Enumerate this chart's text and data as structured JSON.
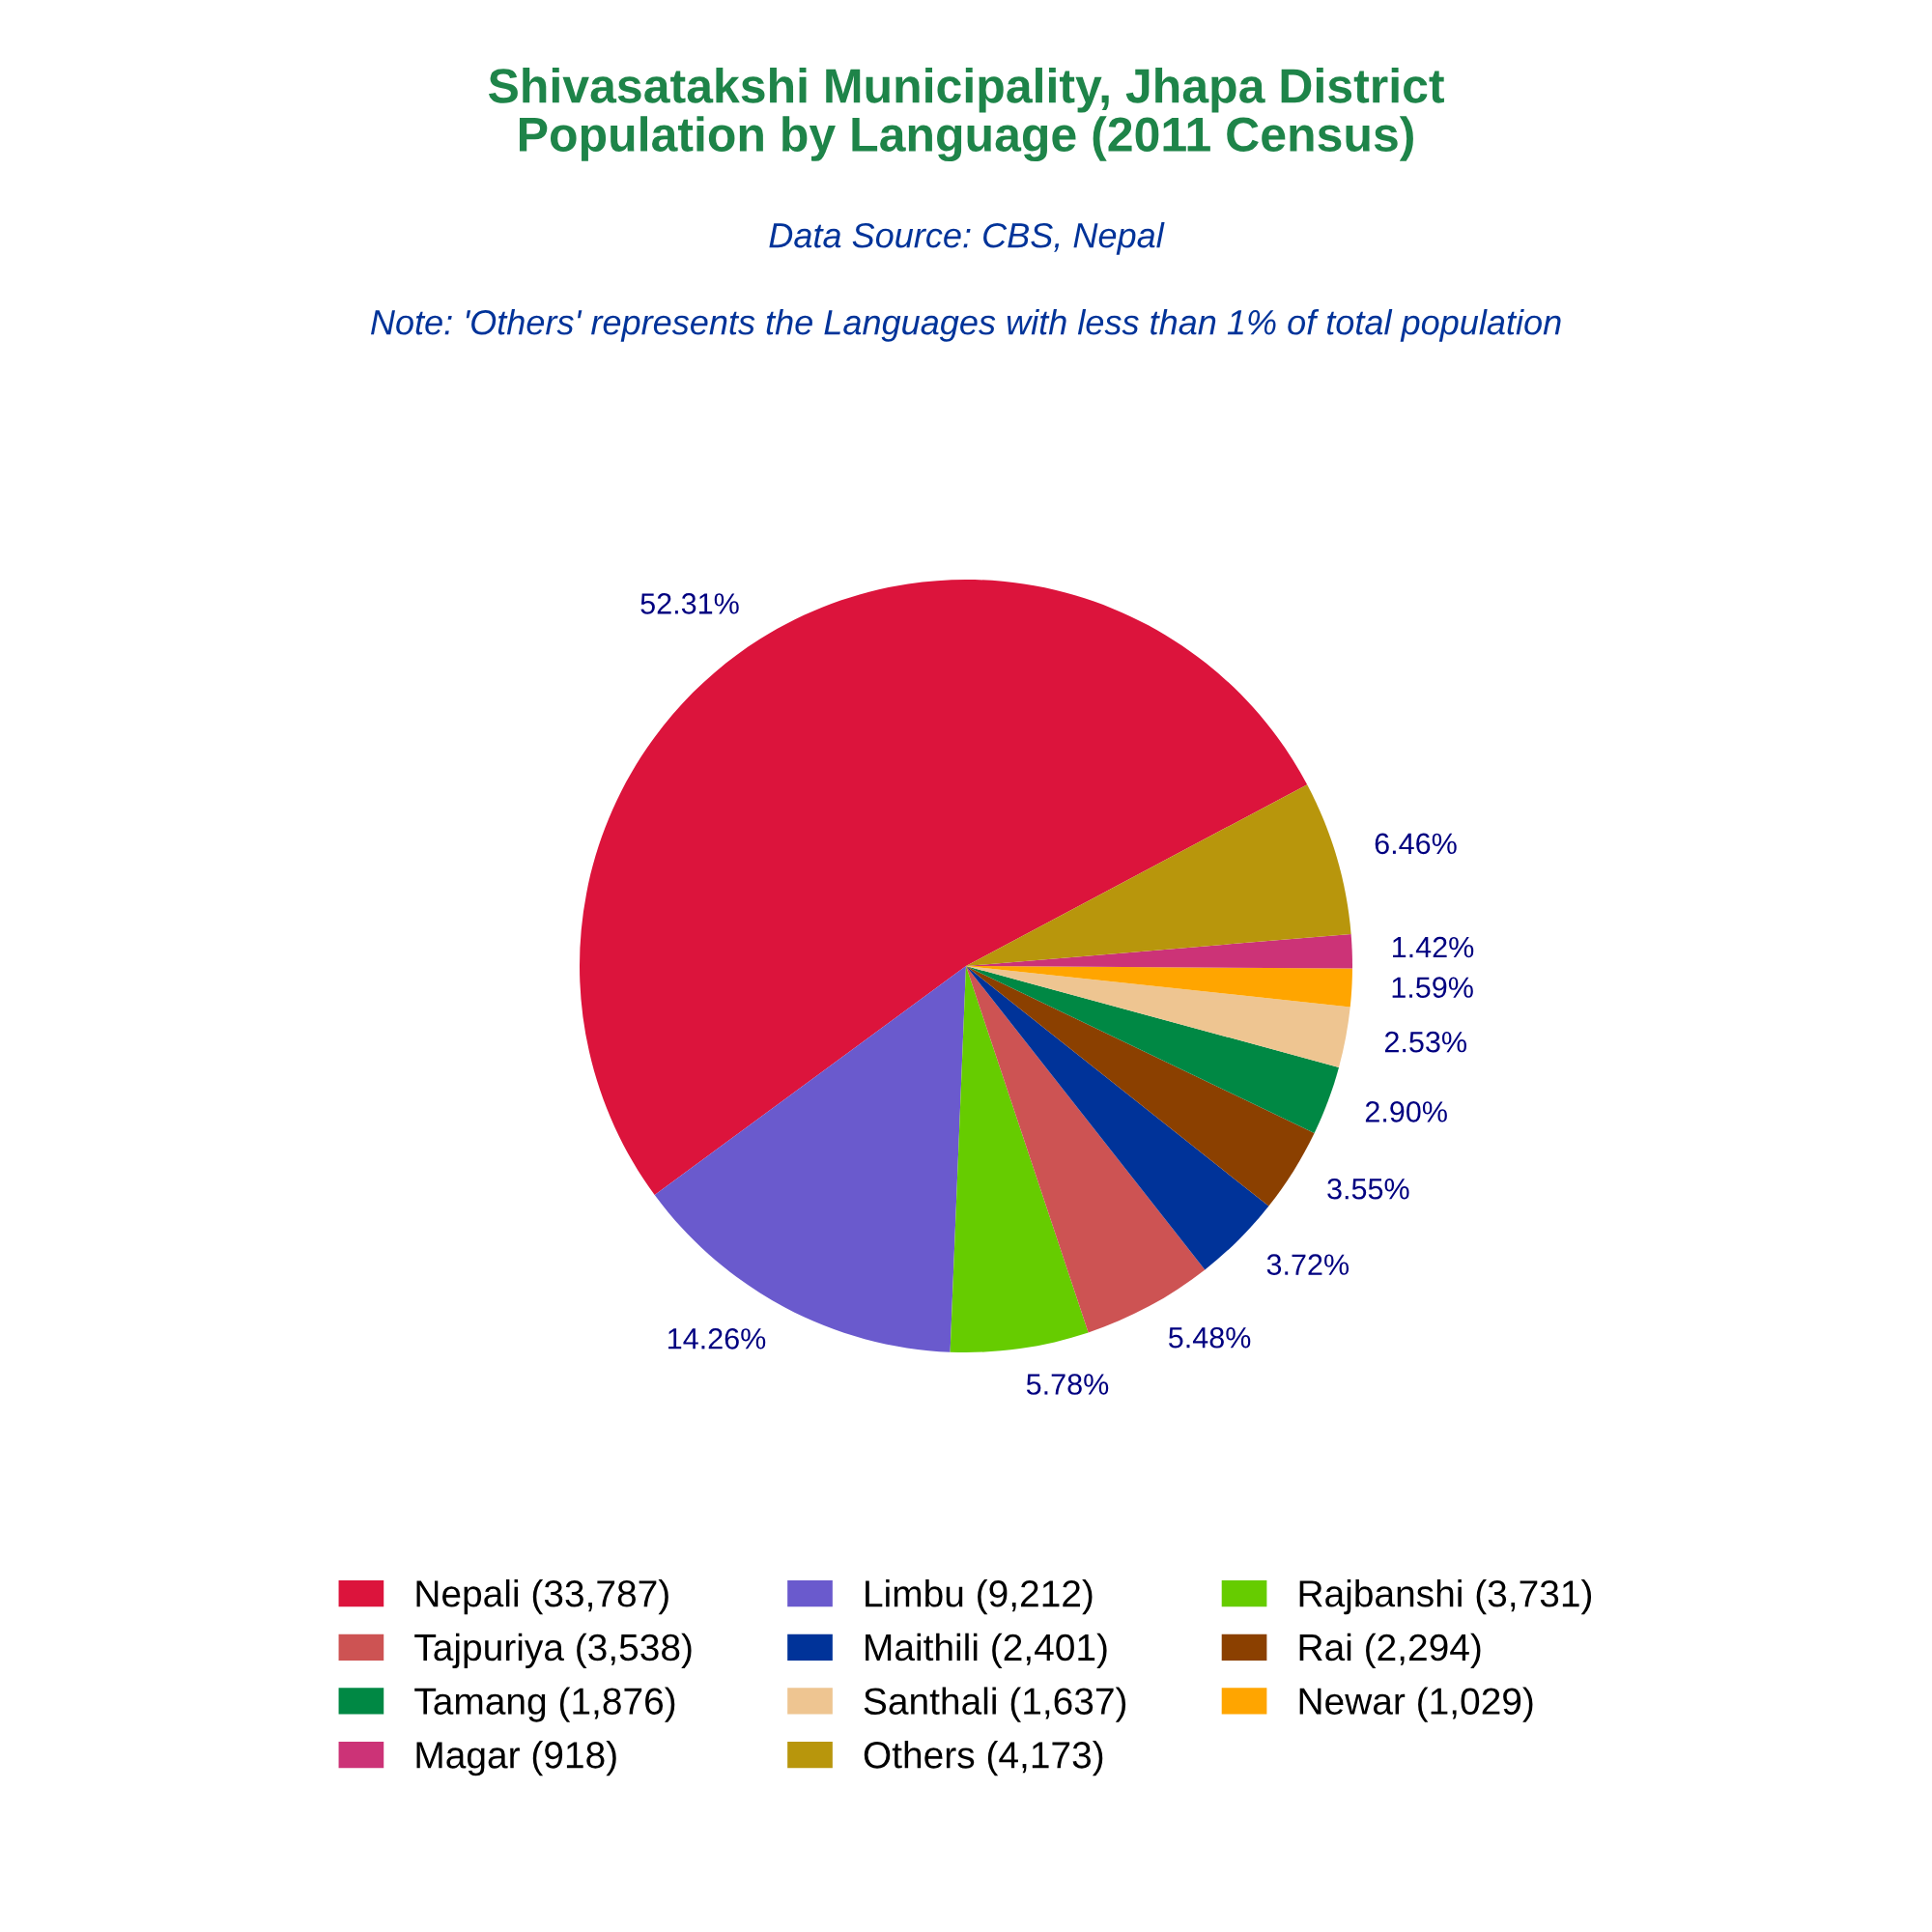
{
  "chart_data": {
    "type": "pie",
    "title": "Shivasatakshi Municipality, Jhapa District\nPopulation by Language (2011 Census)",
    "subtitle": "Data Source: CBS, Nepal",
    "annotations": [
      "Note: 'Others' represents the Languages with less than 1% of total population"
    ],
    "categories": [
      "Nepali (33,787)",
      "Limbu (9,212)",
      "Rajbanshi (3,731)",
      "Tajpuriya (3,538)",
      "Maithili (2,401)",
      "Rai (2,294)",
      "Tamang (1,876)",
      "Santhali (1,637)",
      "Newar (1,029)",
      "Magar (918)",
      "Others (4,173)"
    ],
    "values": [
      52.31,
      14.26,
      5.78,
      5.48,
      3.72,
      3.55,
      2.9,
      2.53,
      1.59,
      1.42,
      6.46
    ],
    "value_labels": [
      "52.31%",
      "14.26%",
      "5.78%",
      "5.48%",
      "3.72%",
      "3.55%",
      "2.90%",
      "2.53%",
      "1.59%",
      "1.42%",
      "6.46%"
    ],
    "colors": [
      "#dc143c",
      "#6a5acd",
      "#66cc00",
      "#cd5353",
      "#003399",
      "#8b4000",
      "#008844",
      "#eec591",
      "#ffa500",
      "#cc3377",
      "#b8960c"
    ],
    "legend": "bottom"
  }
}
